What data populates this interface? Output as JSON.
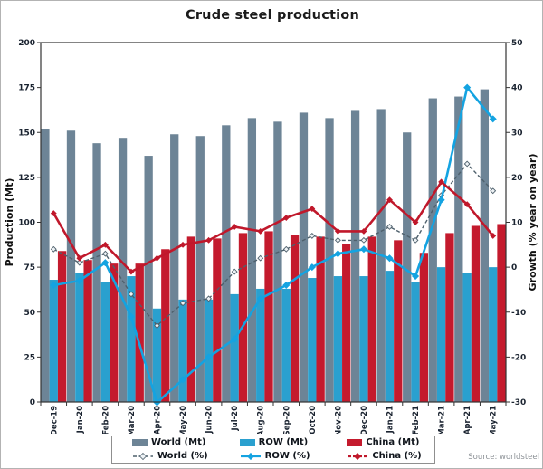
{
  "chart_data": {
    "type": "bar+line",
    "title": "Crude steel production",
    "ylabel_left": "Production (Mt)",
    "ylabel_right": "Growth (% year on year)",
    "ylim_left": [
      0,
      200
    ],
    "ytick_step_left": 25,
    "ylim_right": [
      -30,
      50
    ],
    "ytick_step_right": 10,
    "grid": false,
    "legend_position": "bottom",
    "source": "Source: worldsteel",
    "categories": [
      "Dec-19",
      "Jan-20",
      "Feb-20",
      "Mar-20",
      "Apr-20",
      "May-20",
      "Jun-20",
      "Jul-20",
      "Aug-20",
      "Sep-20",
      "Oct-20",
      "Nov-20",
      "Dec-20",
      "Jan-21",
      "Feb-21",
      "Mar-21",
      "Apr-21",
      "May-21"
    ],
    "bar_series": [
      {
        "name": "World (Mt)",
        "color": "#6d8496",
        "values": [
          152,
          151,
          144,
          147,
          137,
          149,
          148,
          154,
          158,
          156,
          161,
          158,
          162,
          163,
          150,
          169,
          170,
          174
        ]
      },
      {
        "name": "ROW (Mt)",
        "color": "#2aa0cf",
        "values": [
          68,
          72,
          67,
          70,
          52,
          57,
          57,
          60,
          63,
          63,
          69,
          70,
          70,
          73,
          67,
          75,
          72,
          75
        ]
      },
      {
        "name": "China (Mt)",
        "color": "#c41a2d",
        "values": [
          84,
          79,
          77,
          77,
          85,
          92,
          91,
          94,
          95,
          93,
          92,
          88,
          92,
          90,
          83,
          94,
          98,
          99
        ]
      }
    ],
    "line_series": [
      {
        "name": "World (%)",
        "color": "#4e606c",
        "dash": "4,2.5",
        "legend_dash": "4,2.5",
        "width": 1.4,
        "marker_fill": "#eef2f5",
        "marker_r": 2.8,
        "values": [
          4,
          1,
          3,
          -6,
          -13,
          -8,
          -7,
          -1,
          2,
          4,
          7,
          6,
          6,
          9,
          6,
          16,
          23,
          17
        ]
      },
      {
        "name": "ROW (%)",
        "color": "#14a3e1",
        "dash": "",
        "legend_dash": "",
        "width": 2.6,
        "marker_fill": "#14a3e1",
        "marker_r": 3.4,
        "values": [
          -4,
          -3,
          1,
          -11,
          -31,
          -25,
          -20,
          -16,
          -7,
          -4,
          0,
          3,
          4,
          2,
          -2,
          15,
          40,
          33
        ]
      },
      {
        "name": "China (%)",
        "color": "#c0182b",
        "dash": "",
        "legend_dash": "4,2",
        "width": 2.6,
        "marker_fill": "#c0182b",
        "marker_r": 2.8,
        "values": [
          12,
          2,
          5,
          -1,
          2,
          5,
          6,
          9,
          8,
          11,
          13,
          8,
          8,
          15,
          10,
          19,
          14,
          7
        ]
      }
    ]
  }
}
